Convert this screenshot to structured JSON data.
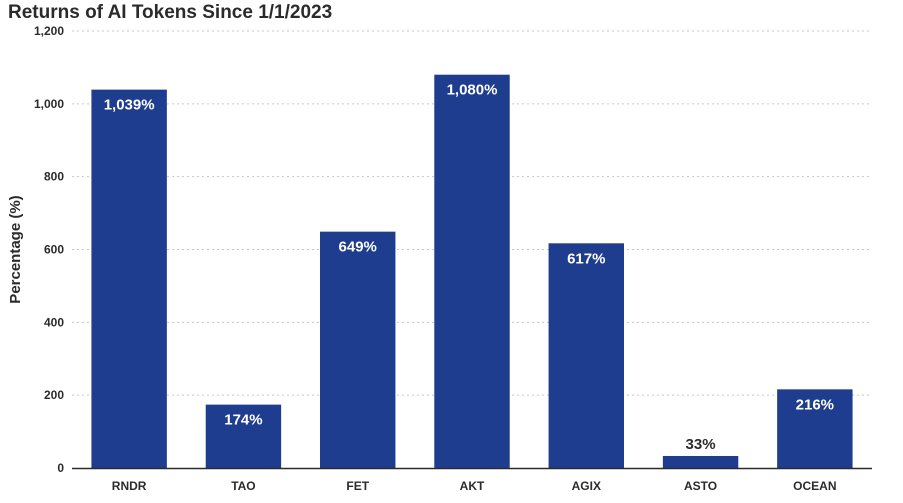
{
  "chart_data": {
    "type": "bar",
    "title": "Returns of AI Tokens Since 1/1/2023",
    "xlabel": "",
    "ylabel": "Percentage (%)",
    "ylim": [
      0,
      1200
    ],
    "yticks": [
      0,
      200,
      400,
      600,
      800,
      1000,
      1200
    ],
    "ytick_labels": [
      "0",
      "200",
      "400",
      "600",
      "800",
      "1,000",
      "1,200"
    ],
    "categories": [
      "RNDR",
      "TAO",
      "FET",
      "AKT",
      "AGIX",
      "ASTO",
      "OCEAN"
    ],
    "values": [
      1039,
      174,
      649,
      1080,
      617,
      33,
      216
    ],
    "data_labels": [
      "1,039%",
      "174%",
      "649%",
      "1,080%",
      "617%",
      "33%",
      "216%"
    ],
    "grid": true,
    "legend": "none",
    "colors": {
      "bar": "#1f3d8f",
      "label_inside": "#ffffff",
      "label_outside": "#2b2b2b",
      "grid": "#c8c8c8",
      "axis": "#2b2b2b"
    }
  }
}
